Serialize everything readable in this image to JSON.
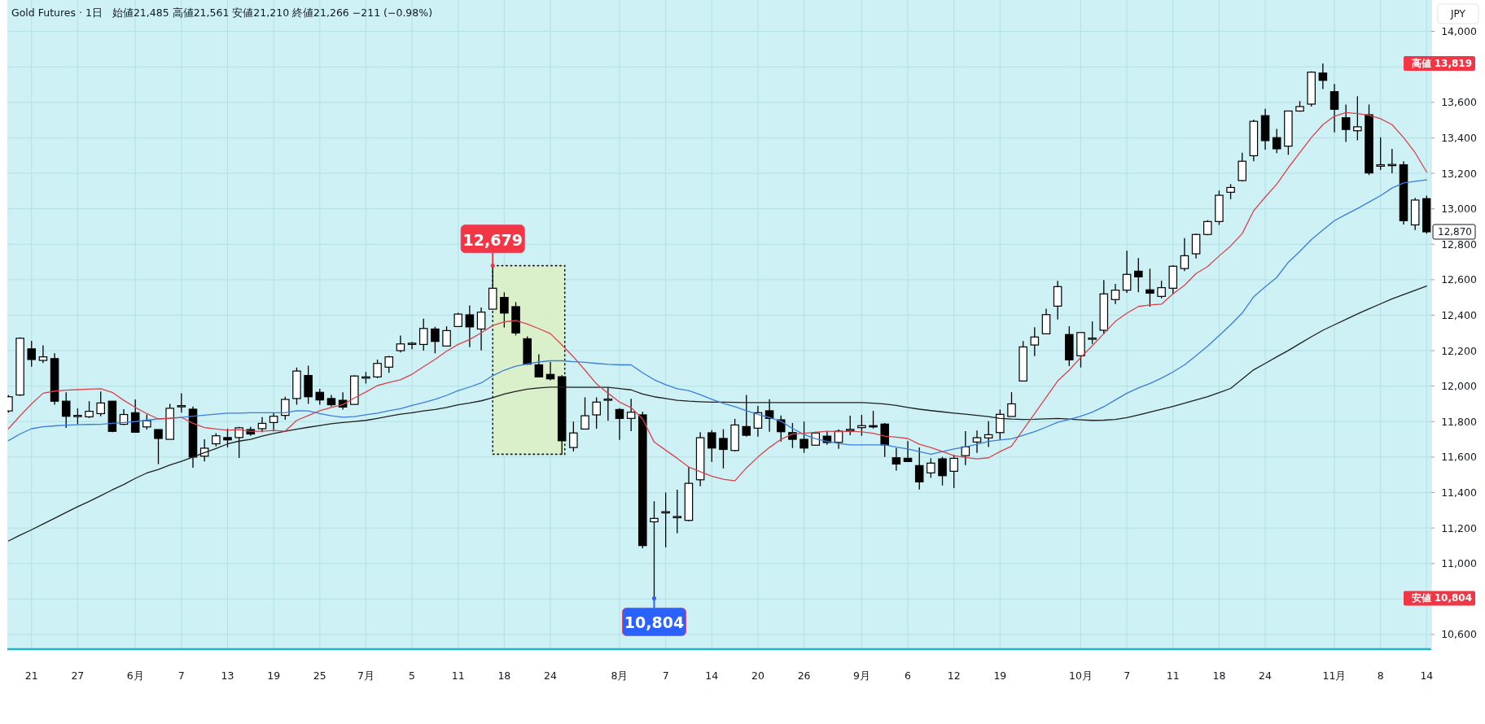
{
  "chart_data": {
    "type": "candlestick",
    "title": "Gold Futures · 1日",
    "subtitle": "始値21,485  高値21,561  安値21,210  終値21,266  −211 (−0.98%)",
    "ylabel": "JPY",
    "categories": [
      null,
      null,
      "21",
      null,
      null,
      null,
      "27",
      null,
      null,
      null,
      null,
      "6月",
      null,
      null,
      null,
      "7",
      null,
      null,
      null,
      "13",
      null,
      null,
      null,
      "19",
      null,
      null,
      null,
      "25",
      null,
      null,
      null,
      "7月",
      null,
      null,
      null,
      "5",
      null,
      null,
      null,
      "11",
      null,
      null,
      null,
      "18",
      null,
      null,
      null,
      "24",
      null,
      null,
      null,
      null,
      null,
      "8月",
      null,
      null,
      null,
      "7",
      null,
      null,
      null,
      "14",
      null,
      null,
      null,
      "20",
      null,
      null,
      null,
      "26",
      null,
      null,
      null,
      null,
      "9月",
      null,
      null,
      null,
      "6",
      null,
      null,
      null,
      "12",
      null,
      null,
      null,
      "19",
      null,
      null,
      null,
      null,
      null,
      null,
      "10月",
      null,
      null,
      null,
      "7",
      null,
      null,
      null,
      "11",
      null,
      null,
      null,
      "18",
      null,
      null,
      null,
      "24",
      null,
      null,
      null,
      null,
      null,
      "11月",
      null,
      null,
      null,
      "8",
      null,
      null,
      null,
      "14"
    ],
    "ohlc": [
      [
        11860,
        11950,
        11850,
        11940
      ],
      [
        11950,
        12275,
        11945,
        12270
      ],
      [
        12210,
        12255,
        12110,
        12150
      ],
      [
        12145,
        12230,
        12130,
        12165
      ],
      [
        12155,
        12185,
        11895,
        11915
      ],
      [
        11915,
        11965,
        11765,
        11830
      ],
      [
        11830,
        11875,
        11785,
        11835
      ],
      [
        11827,
        11915,
        11820,
        11858
      ],
      [
        11845,
        11970,
        11830,
        11905
      ],
      [
        11915,
        11915,
        11740,
        11745
      ],
      [
        11785,
        11870,
        11780,
        11840
      ],
      [
        11850,
        11925,
        11738,
        11740
      ],
      [
        11770,
        11840,
        11755,
        11805
      ],
      [
        11755,
        11755,
        11560,
        11705
      ],
      [
        11700,
        11900,
        11700,
        11875
      ],
      [
        11885,
        11960,
        11850,
        11890
      ],
      [
        11870,
        11885,
        11540,
        11600
      ],
      [
        11605,
        11700,
        11575,
        11650
      ],
      [
        11675,
        11735,
        11660,
        11720
      ],
      [
        11710,
        11760,
        11655,
        11697
      ],
      [
        11710,
        11770,
        11595,
        11765
      ],
      [
        11755,
        11770,
        11720,
        11730
      ],
      [
        11760,
        11825,
        11740,
        11790
      ],
      [
        11795,
        11850,
        11745,
        11830
      ],
      [
        11835,
        11940,
        11810,
        11925
      ],
      [
        11930,
        12105,
        11895,
        12085
      ],
      [
        12060,
        12115,
        11900,
        11940
      ],
      [
        11965,
        11985,
        11895,
        11922
      ],
      [
        11930,
        11950,
        11885,
        11895
      ],
      [
        11920,
        11965,
        11868,
        11882
      ],
      [
        11897,
        12060,
        11895,
        12057
      ],
      [
        12048,
        12080,
        12015,
        12052
      ],
      [
        12052,
        12150,
        12045,
        12128
      ],
      [
        12107,
        12170,
        12075,
        12165
      ],
      [
        12200,
        12285,
        12190,
        12238
      ],
      [
        12238,
        12250,
        12208,
        12242
      ],
      [
        12235,
        12380,
        12200,
        12325
      ],
      [
        12322,
        12335,
        12185,
        12252
      ],
      [
        12226,
        12337,
        12224,
        12313
      ],
      [
        12336,
        12414,
        12333,
        12406
      ],
      [
        12402,
        12455,
        12220,
        12334
      ],
      [
        12322,
        12443,
        12201,
        12417
      ],
      [
        12434,
        12679,
        12433,
        12552
      ],
      [
        12500,
        12529,
        12330,
        12412
      ],
      [
        12448,
        12474,
        12286,
        12300
      ],
      [
        12267,
        12280,
        12120,
        12124
      ],
      [
        12120,
        12180,
        12050,
        12052
      ],
      [
        12066,
        12136,
        12033,
        12041
      ],
      [
        12053,
        12061,
        11616,
        11692
      ],
      [
        11654,
        11800,
        11632,
        11736
      ],
      [
        11758,
        11937,
        11755,
        11833
      ],
      [
        11838,
        11937,
        11760,
        11910
      ],
      [
        11922,
        11990,
        11805,
        11927
      ],
      [
        11868,
        11876,
        11697,
        11818
      ],
      [
        11818,
        11929,
        11746,
        11853
      ],
      [
        11838,
        11856,
        11086,
        11101
      ],
      [
        11235,
        11351,
        10804,
        11254
      ],
      [
        11288,
        11400,
        11091,
        11292
      ],
      [
        11260,
        11416,
        11171,
        11265
      ],
      [
        11243,
        11543,
        11238,
        11452
      ],
      [
        11472,
        11741,
        11435,
        11709
      ],
      [
        11737,
        11752,
        11573,
        11651
      ],
      [
        11705,
        11757,
        11536,
        11643
      ],
      [
        11637,
        11815,
        11632,
        11781
      ],
      [
        11772,
        11950,
        11715,
        11723
      ],
      [
        11763,
        11888,
        11715,
        11850
      ],
      [
        11861,
        11926,
        11743,
        11818
      ],
      [
        11810,
        11834,
        11688,
        11743
      ],
      [
        11738,
        11792,
        11651,
        11700
      ],
      [
        11700,
        11800,
        11624,
        11651
      ],
      [
        11667,
        11743,
        11665,
        11736
      ],
      [
        11718,
        11746,
        11669,
        11682
      ],
      [
        11683,
        11757,
        11646,
        11746
      ],
      [
        11752,
        11833,
        11723,
        11756
      ],
      [
        11766,
        11838,
        11720,
        11777
      ],
      [
        11777,
        11861,
        11761,
        11770
      ],
      [
        11786,
        11792,
        11600,
        11669
      ],
      [
        11596,
        11651,
        11524,
        11561
      ],
      [
        11593,
        11690,
        11573,
        11575
      ],
      [
        11552,
        11654,
        11417,
        11460
      ],
      [
        11511,
        11593,
        11483,
        11566
      ],
      [
        11590,
        11601,
        11440,
        11495
      ],
      [
        11520,
        11612,
        11425,
        11593
      ],
      [
        11608,
        11746,
        11555,
        11657
      ],
      [
        11685,
        11750,
        11624,
        11709
      ],
      [
        11708,
        11802,
        11657,
        11726
      ],
      [
        11738,
        11868,
        11697,
        11841
      ],
      [
        11829,
        11966,
        11829,
        11900
      ],
      [
        12029,
        12254,
        12029,
        12221
      ],
      [
        12232,
        12332,
        12169,
        12277
      ],
      [
        12295,
        12437,
        12295,
        12403
      ],
      [
        12451,
        12593,
        12376,
        12561
      ],
      [
        12291,
        12338,
        12113,
        12148
      ],
      [
        12171,
        12302,
        12105,
        12302
      ],
      [
        12267,
        12365,
        12238,
        12271
      ],
      [
        12315,
        12598,
        12293,
        12520
      ],
      [
        12488,
        12576,
        12463,
        12541
      ],
      [
        12541,
        12763,
        12526,
        12630
      ],
      [
        12648,
        12722,
        12529,
        12616
      ],
      [
        12543,
        12662,
        12448,
        12524
      ],
      [
        12506,
        12594,
        12495,
        12555
      ],
      [
        12552,
        12682,
        12518,
        12676
      ],
      [
        12663,
        12834,
        12648,
        12735
      ],
      [
        12746,
        12860,
        12720,
        12855
      ],
      [
        12855,
        12935,
        12850,
        12928
      ],
      [
        12928,
        13103,
        12909,
        13076
      ],
      [
        13093,
        13139,
        13054,
        13120
      ],
      [
        13159,
        13316,
        13154,
        13268
      ],
      [
        13299,
        13503,
        13268,
        13493
      ],
      [
        13525,
        13563,
        13333,
        13384
      ],
      [
        13401,
        13450,
        13314,
        13338
      ],
      [
        13353,
        13551,
        13304,
        13551
      ],
      [
        13551,
        13607,
        13547,
        13576
      ],
      [
        13590,
        13774,
        13576,
        13770
      ],
      [
        13765,
        13819,
        13675,
        13724
      ],
      [
        13660,
        13704,
        13430,
        13561
      ],
      [
        13513,
        13588,
        13377,
        13447
      ],
      [
        13440,
        13634,
        13386,
        13462
      ],
      [
        13530,
        13588,
        13190,
        13202
      ],
      [
        13240,
        13403,
        13219,
        13248
      ],
      [
        13246,
        13338,
        13200,
        13250
      ],
      [
        13248,
        13268,
        12911,
        12933
      ],
      [
        12909,
        13061,
        12880,
        13049
      ],
      [
        13057,
        13074,
        12860,
        12870
      ]
    ],
    "series": [
      {
        "type": "line",
        "color": "#1f1f1f",
        "values": [
          11127,
          11160,
          11190,
          11223,
          11255,
          11288,
          11320,
          11350,
          11382,
          11415,
          11445,
          11480,
          11510,
          11530,
          11555,
          11576,
          11600,
          11625,
          11648,
          11674,
          11690,
          11700,
          11718,
          11733,
          11746,
          11757,
          11768,
          11778,
          11788,
          11795,
          11801,
          11807,
          11818,
          11830,
          11842,
          11850,
          11860,
          11868,
          11880,
          11895,
          11905,
          11917,
          11935,
          11955,
          11970,
          11983,
          11990,
          11994,
          11994,
          11993,
          11993,
          11993,
          11993,
          11986,
          11979,
          11955,
          11940,
          11930,
          11920,
          11915,
          11912,
          11910,
          11910,
          11908,
          11907,
          11907,
          11907,
          11907,
          11907,
          11907,
          11907,
          11907,
          11907,
          11907,
          11907,
          11904,
          11899,
          11891,
          11880,
          11870,
          11862,
          11855,
          11848,
          11842,
          11835,
          11828,
          11818,
          11814,
          11812,
          11813,
          11816,
          11818,
          11814,
          11810,
          11807,
          11808,
          11812,
          11822,
          11837,
          11853,
          11869,
          11885,
          11904,
          11922,
          11941,
          11963,
          11987,
          12040,
          12092,
          12128,
          12165,
          12201,
          12240,
          12278,
          12315,
          12346,
          12376,
          12407,
          12436,
          12464,
          12492,
          12516,
          12540,
          12564
        ]
      },
      {
        "type": "line",
        "color": "#3b7ddd",
        "values": [
          11693,
          11730,
          11760,
          11771,
          11776,
          11780,
          11782,
          11784,
          11785,
          11790,
          11795,
          11800,
          11808,
          11815,
          11820,
          11824,
          11830,
          11836,
          11842,
          11848,
          11848,
          11850,
          11850,
          11850,
          11850,
          11861,
          11860,
          11845,
          11833,
          11825,
          11828,
          11838,
          11848,
          11861,
          11873,
          11891,
          11907,
          11926,
          11948,
          11975,
          11995,
          12018,
          12059,
          12090,
          12113,
          12125,
          12136,
          12143,
          12143,
          12138,
          12134,
          12128,
          12123,
          12120,
          12120,
          12075,
          12036,
          12008,
          11985,
          11975,
          11952,
          11926,
          11903,
          11884,
          11861,
          11841,
          11823,
          11802,
          11761,
          11727,
          11703,
          11688,
          11677,
          11669,
          11669,
          11669,
          11669,
          11656,
          11646,
          11631,
          11616,
          11631,
          11646,
          11657,
          11672,
          11688,
          11696,
          11703,
          11723,
          11743,
          11769,
          11796,
          11812,
          11830,
          11853,
          11884,
          11922,
          11960,
          11990,
          12015,
          12045,
          12080,
          12120,
          12172,
          12225,
          12285,
          12346,
          12412,
          12504,
          12560,
          12613,
          12698,
          12760,
          12826,
          12880,
          12933,
          12968,
          13001,
          13038,
          13074,
          13117,
          13146,
          13155,
          13163
        ]
      },
      {
        "type": "line",
        "color": "#d9434e",
        "values": [
          11760,
          11832,
          11900,
          11960,
          11972,
          11977,
          11980,
          11983,
          11985,
          11965,
          11920,
          11880,
          11845,
          11815,
          11818,
          11824,
          11790,
          11766,
          11758,
          11751,
          11755,
          11746,
          11746,
          11750,
          11746,
          11807,
          11834,
          11861,
          11880,
          11896,
          11933,
          11967,
          12003,
          12021,
          12036,
          12067,
          12110,
          12151,
          12197,
          12235,
          12263,
          12300,
          12342,
          12362,
          12370,
          12350,
          12324,
          12296,
          12232,
          12165,
          12090,
          12013,
          11960,
          11910,
          11879,
          11815,
          11685,
          11639,
          11593,
          11544,
          11517,
          11492,
          11475,
          11466,
          11539,
          11600,
          11654,
          11700,
          11731,
          11734,
          11740,
          11746,
          11743,
          11746,
          11742,
          11734,
          11718,
          11712,
          11705,
          11672,
          11654,
          11631,
          11608,
          11598,
          11590,
          11596,
          11631,
          11662,
          11754,
          11845,
          11937,
          12029,
          12090,
          12162,
          12228,
          12296,
          12365,
          12411,
          12449,
          12458,
          12462,
          12520,
          12568,
          12635,
          12674,
          12734,
          12790,
          12860,
          12989,
          13066,
          13139,
          13231,
          13316,
          13401,
          13474,
          13522,
          13542,
          13537,
          13527,
          13508,
          13474,
          13401,
          13316,
          13207
        ]
      }
    ],
    "ylim": [
      10517,
      14177
    ],
    "yticks": [
      {
        "value": 10600,
        "label": "10,600"
      },
      {
        "value": 10800,
        "label": null
      },
      {
        "value": 11000,
        "label": "11,000"
      },
      {
        "value": 11200,
        "label": "11,200"
      },
      {
        "value": 11400,
        "label": "11,400"
      },
      {
        "value": 11600,
        "label": "11,600"
      },
      {
        "value": 11800,
        "label": "11,800"
      },
      {
        "value": 12000,
        "label": "12,000"
      },
      {
        "value": 12200,
        "label": "12,200"
      },
      {
        "value": 12400,
        "label": "12,400"
      },
      {
        "value": 12600,
        "label": "12,600"
      },
      {
        "value": 12800,
        "label": "12,800"
      },
      {
        "value": 13000,
        "label": "13,000"
      },
      {
        "value": 13200,
        "label": "13,200"
      },
      {
        "value": 13400,
        "label": "13,400"
      },
      {
        "value": 13600,
        "label": "13,600"
      },
      {
        "value": 13800,
        "label": null
      },
      {
        "value": 14000,
        "label": "14,000"
      }
    ],
    "grid": true,
    "annotations": [
      {
        "text": "12,679",
        "y": 12679
      },
      {
        "text": "10,804",
        "y": 10804
      },
      "高値 13,819",
      "安値 10,804",
      "12,870"
    ]
  }
}
